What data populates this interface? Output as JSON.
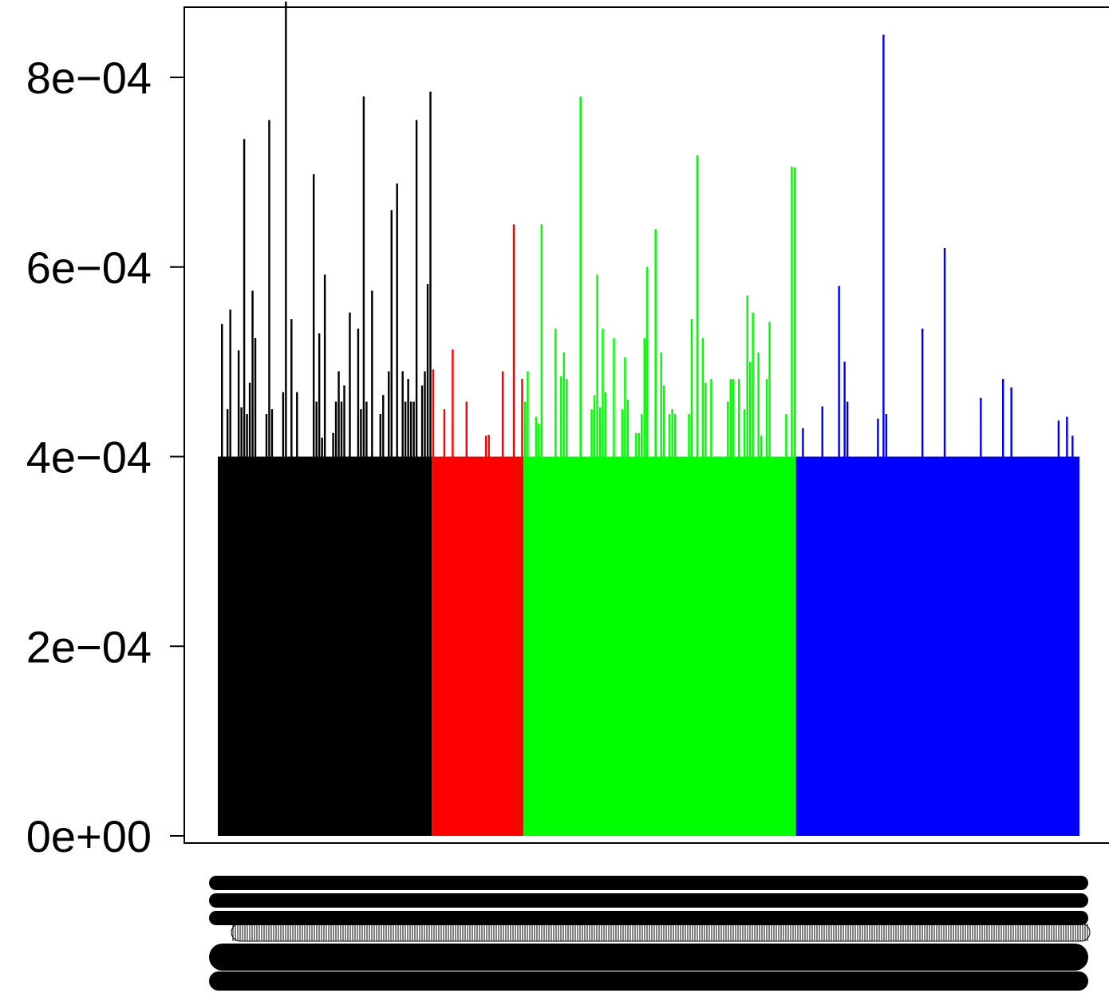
{
  "chart_data": {
    "type": "bar",
    "title": "",
    "xlabel": "",
    "ylabel": "",
    "ylim": [
      0,
      0.00088
    ],
    "grid": false,
    "legend": "none",
    "y_ticks": [
      {
        "value": 0,
        "label": "0e+00"
      },
      {
        "value": 0.0002,
        "label": "2e−04"
      },
      {
        "value": 0.0004,
        "label": "4e−04"
      },
      {
        "value": 0.0006,
        "label": "6e−04"
      },
      {
        "value": 0.0008,
        "label": "8e−04"
      }
    ],
    "baseline_value": 0.0004,
    "groups": [
      {
        "color": "#000000",
        "values": [
          0.0004,
          0.00054,
          0.0004,
          0.00045,
          0.000555,
          0.0004,
          0.0004,
          0.000512,
          0.000452,
          0.000735,
          0.000445,
          0.000478,
          0.000575,
          0.000525,
          0.0004,
          0.0004,
          0.0004,
          0.000445,
          0.000755,
          0.00045,
          0.0004,
          0.0004,
          0.0004,
          0.000468,
          0.00088,
          0.0004,
          0.000545,
          0.0004,
          0.000468,
          0.0004,
          0.0004,
          0.0004,
          0.0004,
          0.0004,
          0.000698,
          0.000458,
          0.00053,
          0.00042,
          0.000592,
          0.0004,
          0.0004,
          0.000425,
          0.000458,
          0.00049,
          0.000458,
          0.000475,
          0.0004,
          0.000552,
          0.0004,
          0.0004,
          0.000535,
          0.00045,
          0.00078,
          0.000458,
          0.0004,
          0.000575,
          0.0004,
          0.0004,
          0.000445,
          0.000465,
          0.0004,
          0.00049,
          0.00066,
          0.0004,
          0.000688,
          0.0004,
          0.00049,
          0.000458,
          0.000482,
          0.000458,
          0.000458,
          0.000755,
          0.0004,
          0.000475,
          0.00049,
          0.000582,
          0.000785
        ]
      },
      {
        "color": "#ff0000",
        "values": [
          0.000492,
          0.0004,
          0.0004,
          0.0004,
          0.00045,
          0.0004,
          0.0004,
          0.000513,
          0.0004,
          0.0004,
          0.0004,
          0.0004,
          0.000458,
          0.0004,
          0.0004,
          0.0004,
          0.0004,
          0.0004,
          0.0004,
          0.000422,
          0.000423,
          0.0004,
          0.0004,
          0.0004,
          0.0004,
          0.00049,
          0.0004,
          0.0004,
          0.0004,
          0.000645,
          0.0004,
          0.0004,
          0.000482
        ]
      },
      {
        "color": "#00ff00",
        "values": [
          0.000458,
          0.00049,
          0.0004,
          0.0004,
          0.000442,
          0.000435,
          0.000645,
          0.0004,
          0.0004,
          0.0004,
          0.0004,
          0.000535,
          0.0004,
          0.000485,
          0.00051,
          0.000482,
          0.0004,
          0.0004,
          0.0004,
          0.0004,
          0.00078,
          0.0004,
          0.0004,
          0.0004,
          0.00045,
          0.000465,
          0.000592,
          0.000452,
          0.000535,
          0.000468,
          0.0004,
          0.0004,
          0.000525,
          0.0004,
          0.0004,
          0.00045,
          0.000505,
          0.00046,
          0.0004,
          0.0004,
          0.000425,
          0.000425,
          0.000445,
          0.000525,
          0.0006,
          0.0004,
          0.0004,
          0.00064,
          0.0004,
          0.00051,
          0.000475,
          0.0004,
          0.000445,
          0.00045,
          0.000445,
          0.0004,
          0.0004,
          0.0004,
          0.0004,
          0.000445,
          0.000545,
          0.0004,
          0.000718,
          0.0004,
          0.000525,
          0.000478,
          0.0004,
          0.000482,
          0.0004,
          0.0004,
          0.0004,
          0.0004,
          0.0004,
          0.000458,
          0.000482,
          0.000482,
          0.0004,
          0.000482,
          0.0004,
          0.00045,
          0.00057,
          0.0005,
          0.000552,
          0.0004,
          0.00051,
          0.000422,
          0.0004,
          0.000482,
          0.000542,
          0.0004,
          0.0004,
          0.0004,
          0.0004,
          0.0004,
          0.000445,
          0.0004,
          0.000706,
          0.000705
        ]
      },
      {
        "color": "#0000ff",
        "values": [
          0.0004,
          0.0004,
          0.00043,
          0.0004,
          0.0004,
          0.0004,
          0.0004,
          0.0004,
          0.0004,
          0.000453,
          0.0004,
          0.0004,
          0.0004,
          0.0004,
          0.0004,
          0.00058,
          0.0004,
          0.0005,
          0.000458,
          0.0004,
          0.0004,
          0.0004,
          0.0004,
          0.0004,
          0.0004,
          0.0004,
          0.0004,
          0.0004,
          0.0004,
          0.00044,
          0.0004,
          0.000845,
          0.000445,
          0.0004,
          0.0004,
          0.0004,
          0.0004,
          0.0004,
          0.0004,
          0.0004,
          0.0004,
          0.0004,
          0.0004,
          0.0004,
          0.0004,
          0.000535,
          0.0004,
          0.0004,
          0.0004,
          0.0004,
          0.0004,
          0.0004,
          0.0004,
          0.00062,
          0.0004,
          0.0004,
          0.0004,
          0.0004,
          0.0004,
          0.0004,
          0.0004,
          0.0004,
          0.0004,
          0.0004,
          0.0004,
          0.0004,
          0.000462,
          0.0004,
          0.0004,
          0.0004,
          0.0004,
          0.0004,
          0.0004,
          0.0004,
          0.000482,
          0.0004,
          0.0004,
          0.000473,
          0.0004,
          0.0004,
          0.0004,
          0.0004,
          0.0004,
          0.0004,
          0.0004,
          0.0004,
          0.0004,
          0.0004,
          0.0004,
          0.0004,
          0.0004,
          0.0004,
          0.0004,
          0.0004,
          0.000438,
          0.0004,
          0.0004,
          0.000442,
          0.0004,
          0.000422,
          0.0004,
          0.0004
        ]
      }
    ]
  }
}
